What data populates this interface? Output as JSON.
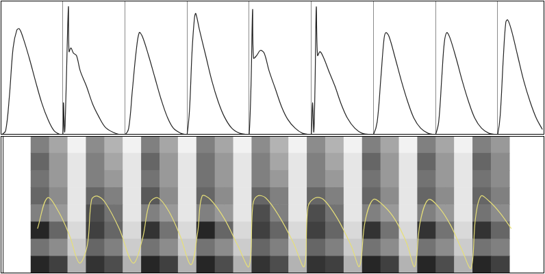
{
  "chart_data": [
    {
      "type": "line",
      "xlim": [
        0,
        8.75
      ],
      "xticks": [
        0,
        1,
        2,
        3,
        4,
        5,
        6,
        7,
        8
      ],
      "ylim": [
        0,
        1.05
      ],
      "grid": true,
      "tick_labels": false,
      "series": [
        {
          "color": "#222222",
          "x": [
            0.02,
            0.08,
            0.14,
            0.2,
            0.26,
            0.3,
            0.36,
            0.46,
            0.56,
            0.66,
            0.76,
            0.86,
            0.96,
            1.0,
            1.01,
            1.03,
            1.05,
            1.09,
            1.1,
            1.13,
            1.17,
            1.22,
            1.28,
            1.38,
            1.48,
            1.58,
            1.68,
            1.8,
            1.92,
            2.0,
            2.06,
            2.12,
            2.18,
            2.23,
            2.28,
            2.38,
            2.48,
            2.58,
            2.68,
            2.78,
            2.9,
            2.98,
            3.0,
            3.04,
            3.08,
            3.12,
            3.14,
            3.2,
            3.3,
            3.4,
            3.5,
            3.6,
            3.72,
            3.85,
            3.98,
            4.0,
            4.03,
            4.055,
            4.07,
            4.12,
            4.18,
            4.24,
            4.32,
            4.42,
            4.52,
            4.62,
            4.74,
            4.86,
            4.98,
            5.0,
            5.02,
            5.04,
            5.06,
            5.08,
            5.1,
            5.14,
            5.2,
            5.28,
            5.38,
            5.48,
            5.58,
            5.7,
            5.82,
            5.96,
            6.0,
            6.06,
            6.12,
            6.17,
            6.2,
            6.25,
            6.35,
            6.45,
            6.55,
            6.65,
            6.76,
            6.88,
            6.98,
            7.0,
            7.05,
            7.1,
            7.14,
            7.18,
            7.23,
            7.33,
            7.43,
            7.53,
            7.63,
            7.74,
            7.86,
            7.98,
            8.0,
            8.04,
            8.09,
            8.13,
            8.16,
            8.22,
            8.32,
            8.42,
            8.52,
            8.62,
            8.72
          ],
          "values": [
            0,
            0.03,
            0.3,
            0.68,
            0.82,
            0.83,
            0.76,
            0.6,
            0.42,
            0.25,
            0.12,
            0.03,
            0,
            0,
            0.25,
            0.02,
            0.3,
            1.0,
            0.65,
            0.68,
            0.64,
            0.62,
            0.5,
            0.38,
            0.24,
            0.14,
            0.06,
            0.02,
            0,
            0,
            0.05,
            0.35,
            0.65,
            0.8,
            0.77,
            0.62,
            0.45,
            0.28,
            0.14,
            0.05,
            0.01,
            0,
            0,
            0.2,
            0.65,
            0.92,
            0.95,
            0.82,
            0.62,
            0.42,
            0.26,
            0.14,
            0.05,
            0.01,
            0,
            0,
            0.4,
            0.98,
            0.6,
            0.62,
            0.66,
            0.64,
            0.5,
            0.36,
            0.22,
            0.12,
            0.05,
            0.01,
            0,
            0,
            0.25,
            0.02,
            0.4,
            1.0,
            0.62,
            0.65,
            0.6,
            0.5,
            0.38,
            0.24,
            0.13,
            0.05,
            0.01,
            0,
            0,
            0.1,
            0.45,
            0.75,
            0.8,
            0.77,
            0.6,
            0.42,
            0.26,
            0.13,
            0.05,
            0.01,
            0,
            0,
            0.1,
            0.45,
            0.72,
            0.8,
            0.76,
            0.6,
            0.42,
            0.26,
            0.13,
            0.05,
            0.01,
            0,
            0,
            0.15,
            0.6,
            0.88,
            0.9,
            0.82,
            0.62,
            0.42,
            0.26,
            0.13,
            0.04
          ]
        }
      ]
    },
    {
      "type": "heatmap",
      "xlim": [
        0,
        8.75
      ],
      "xticks": [
        0,
        1,
        2,
        3,
        4,
        5,
        6,
        7,
        8
      ],
      "ylim": [
        0,
        8
      ],
      "grid": true,
      "tick_labels": false,
      "x": [
        0.1667,
        0.5,
        0.8333,
        1.1667,
        1.5,
        1.8333,
        2.1667,
        2.5,
        2.8333,
        3.1667,
        3.5,
        3.8333,
        4.1667,
        4.5,
        4.8333,
        5.1667,
        5.5,
        5.8333,
        6.1667,
        6.5,
        6.8333,
        7.1667,
        7.5,
        7.8333,
        8.1667,
        8.5
      ],
      "cells": [
        [
          0.85,
          0.75,
          0.3,
          0.8,
          0.7,
          0.3,
          0.85,
          0.75,
          0.3,
          0.85,
          0.7,
          0.3,
          0.8,
          0.7,
          0.3,
          0.8,
          0.75,
          0.3,
          0.85,
          0.75,
          0.3,
          0.85,
          0.7,
          0.3,
          0.85,
          0.75
        ],
        [
          0.55,
          0.45,
          0.2,
          0.6,
          0.5,
          0.2,
          0.55,
          0.45,
          0.2,
          0.55,
          0.45,
          0.2,
          0.6,
          0.5,
          0.2,
          0.6,
          0.5,
          0.2,
          0.55,
          0.45,
          0.2,
          0.55,
          0.45,
          0.2,
          0.55,
          0.5
        ],
        [
          0.85,
          0.6,
          0.15,
          0.75,
          0.6,
          0.15,
          0.8,
          0.55,
          0.15,
          0.85,
          0.6,
          0.15,
          0.75,
          0.6,
          0.15,
          0.75,
          0.6,
          0.15,
          0.8,
          0.55,
          0.15,
          0.8,
          0.55,
          0.15,
          0.8,
          0.6
        ],
        [
          0.5,
          0.4,
          0.1,
          0.7,
          0.55,
          0.1,
          0.5,
          0.4,
          0.1,
          0.5,
          0.4,
          0.1,
          0.7,
          0.5,
          0.1,
          0.7,
          0.55,
          0.1,
          0.5,
          0.4,
          0.1,
          0.5,
          0.4,
          0.1,
          0.55,
          0.45
        ],
        [
          0.6,
          0.45,
          0.1,
          0.6,
          0.5,
          0.1,
          0.65,
          0.45,
          0.1,
          0.6,
          0.45,
          0.1,
          0.6,
          0.5,
          0.1,
          0.6,
          0.5,
          0.1,
          0.6,
          0.45,
          0.1,
          0.6,
          0.45,
          0.1,
          0.6,
          0.5
        ],
        [
          0.55,
          0.4,
          0.1,
          0.5,
          0.4,
          0.1,
          0.55,
          0.4,
          0.1,
          0.55,
          0.4,
          0.1,
          0.5,
          0.4,
          0.1,
          0.5,
          0.4,
          0.1,
          0.55,
          0.4,
          0.1,
          0.55,
          0.4,
          0.1,
          0.55,
          0.45
        ],
        [
          0.6,
          0.4,
          0.1,
          0.5,
          0.35,
          0.1,
          0.6,
          0.4,
          0.1,
          0.55,
          0.4,
          0.1,
          0.5,
          0.35,
          0.1,
          0.5,
          0.35,
          0.1,
          0.6,
          0.4,
          0.1,
          0.6,
          0.4,
          0.1,
          0.6,
          0.45
        ],
        [
          0.5,
          0.35,
          0.05,
          0.45,
          0.3,
          0.05,
          0.5,
          0.35,
          0.05,
          0.5,
          0.35,
          0.05,
          0.45,
          0.3,
          0.05,
          0.45,
          0.3,
          0.05,
          0.5,
          0.35,
          0.05,
          0.5,
          0.35,
          0.05,
          0.5,
          0.4
        ]
      ],
      "series": [
        {
          "type": "line",
          "color": "#e6df78",
          "x": [
            0.12,
            0.3,
            0.5,
            0.7,
            0.88,
            1.02,
            1.1,
            1.2,
            1.35,
            1.6,
            1.85,
            2.02,
            2.15,
            2.3,
            2.5,
            2.7,
            2.9,
            3.02,
            3.1,
            3.25,
            3.5,
            3.75,
            3.95,
            4.02,
            4.1,
            4.25,
            4.5,
            4.75,
            4.95,
            5.02,
            5.15,
            5.3,
            5.55,
            5.8,
            5.95,
            6.05,
            6.2,
            6.4,
            6.6,
            6.8,
            6.95,
            7.05,
            7.2,
            7.4,
            7.6,
            7.8,
            7.97,
            8.05,
            8.15,
            8.3,
            8.5,
            8.7
          ],
          "values": [
            2.6,
            4.4,
            3.6,
            2.2,
            0.6,
            1.6,
            4.3,
            4.5,
            4.1,
            2.6,
            0.6,
            2.0,
            4.1,
            4.4,
            3.6,
            2.2,
            0.5,
            2.4,
            4.5,
            4.3,
            3.2,
            1.6,
            0.4,
            4.0,
            4.5,
            4.4,
            3.3,
            1.8,
            0.4,
            3.9,
            4.4,
            4.3,
            3.2,
            1.6,
            0.4,
            3.0,
            4.3,
            3.9,
            3.1,
            1.8,
            0.4,
            3.0,
            4.3,
            3.8,
            2.8,
            1.4,
            0.3,
            3.2,
            4.5,
            4.2,
            3.5,
            2.6
          ]
        }
      ]
    }
  ]
}
